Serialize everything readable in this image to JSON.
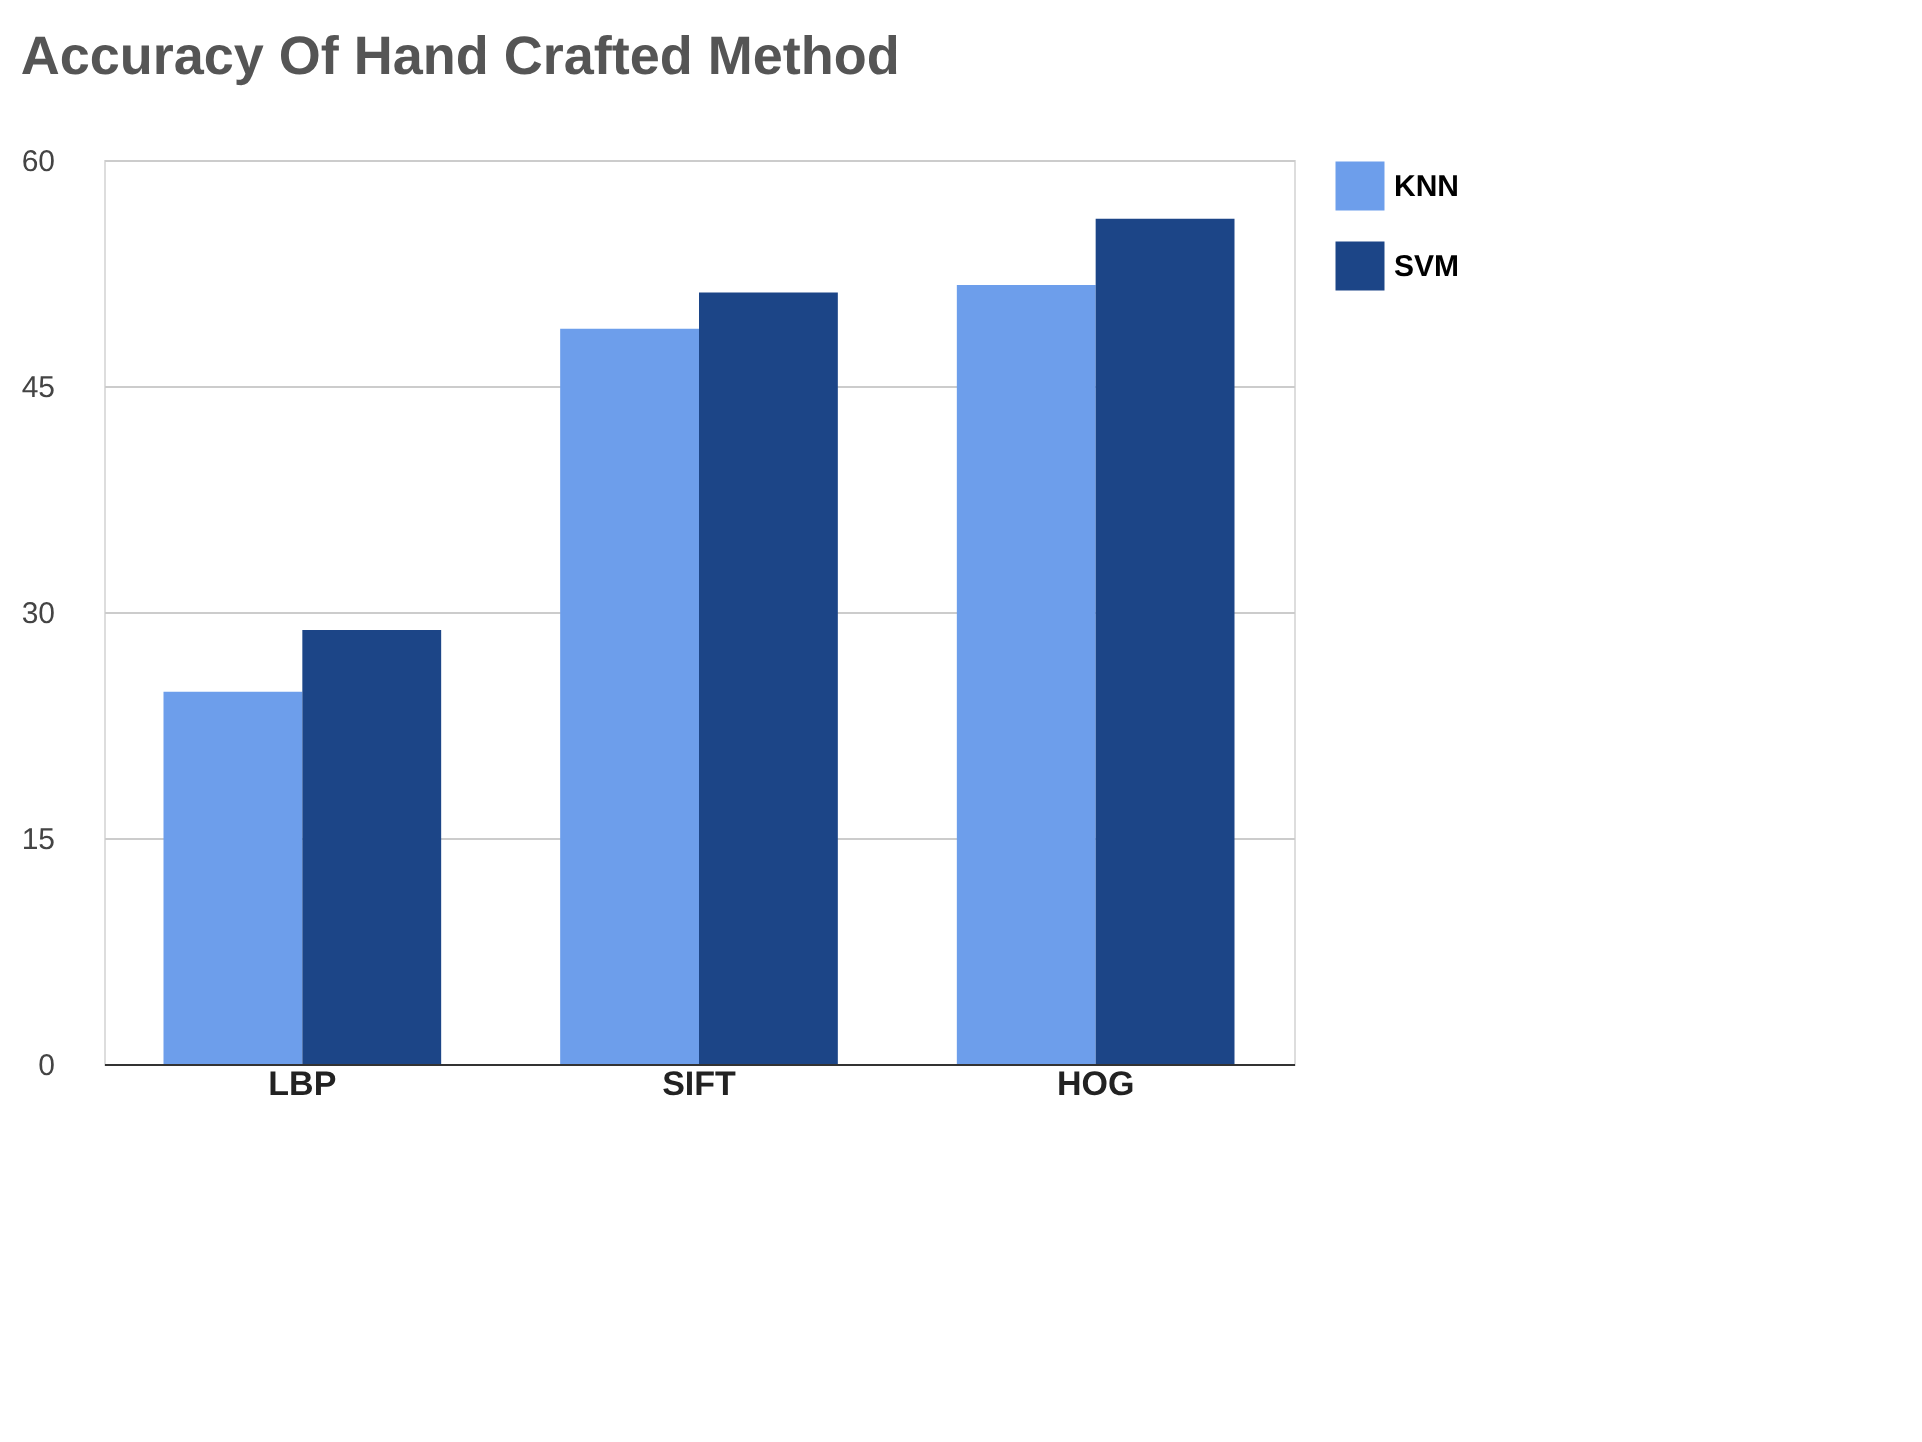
{
  "chart_data": {
    "type": "bar",
    "title": "Accuracy Of Hand Crafted Method",
    "categories": [
      "LBP",
      "SIFT",
      "HOG"
    ],
    "series": [
      {
        "name": "KNN",
        "color": "#6d9eeb",
        "values": [
          24.7,
          48.8,
          51.7
        ]
      },
      {
        "name": "SVM",
        "color": "#1c4587",
        "values": [
          28.8,
          51.2,
          56.1
        ]
      }
    ],
    "ylim": [
      0,
      60
    ],
    "yticks": [
      0,
      15,
      30,
      45,
      60
    ],
    "grid": "y",
    "legend": "top right"
  }
}
